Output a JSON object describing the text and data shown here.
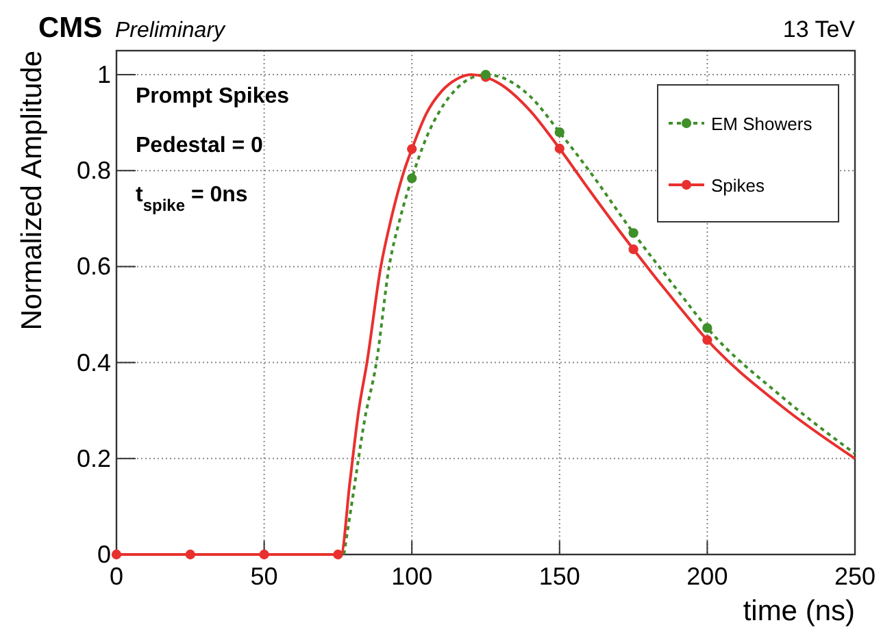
{
  "chart_data": {
    "type": "line",
    "title": "CMS",
    "subtitle": "Preliminary",
    "xlabel": "time (ns)",
    "ylabel": "Normalized Amplitude",
    "annotations": [
      "13 TeV",
      "Prompt Spikes",
      "Pedestal = 0",
      "t$_{spike}$ = 0ns"
    ],
    "xlim": [
      0,
      250
    ],
    "xticks": [
      0,
      50,
      100,
      150,
      200,
      250
    ],
    "ylim": [
      0,
      1.05
    ],
    "yticks": [
      0,
      0.2,
      0.4,
      0.6,
      0.8,
      1
    ],
    "grid": true,
    "legend": "top right",
    "series": [
      {
        "name": "EM Showers",
        "color": "#3f8f2a",
        "line_style": "dotted",
        "x": [
          77,
          80,
          84,
          88,
          92.3,
          96,
          100,
          105,
          110,
          115,
          120,
          125,
          130,
          140,
          150,
          160,
          175,
          190,
          200,
          225,
          250
        ],
        "values": [
          0,
          0.12,
          0.28,
          0.4,
          0.6,
          0.7,
          0.784,
          0.87,
          0.93,
          0.97,
          0.993,
          1,
          0.995,
          0.955,
          0.88,
          0.8,
          0.67,
          0.55,
          0.472,
          0.33,
          0.21
        ]
      },
      {
        "name": "Spikes",
        "color": "#e8312f",
        "line_style": "solid",
        "x": [
          0,
          25,
          50,
          75,
          76,
          79,
          82,
          84.8,
          89.5,
          93,
          97.4,
          100,
          105,
          110,
          115,
          120,
          125,
          130,
          140,
          150,
          160,
          175,
          190,
          200,
          225,
          250
        ],
        "values": [
          0,
          0,
          0,
          0,
          0,
          0.15,
          0.3,
          0.4,
          0.6,
          0.7,
          0.8,
          0.845,
          0.92,
          0.965,
          0.99,
          1,
          0.995,
          0.98,
          0.925,
          0.846,
          0.76,
          0.636,
          0.52,
          0.447,
          0.31,
          0.2
        ]
      },
      {
        "type": "scatter",
        "color": "#e8312f",
        "marker": "circle",
        "x": [
          0,
          25,
          50,
          75,
          100,
          125,
          150,
          175,
          200
        ],
        "values": [
          0,
          0,
          0,
          0,
          0.845,
          0.995,
          0.846,
          0.636,
          0.447
        ]
      },
      {
        "type": "scatter",
        "color": "#3f8f2a",
        "marker": "circle",
        "x": [
          100,
          125,
          150,
          175,
          200
        ],
        "values": [
          0.784,
          1,
          0.88,
          0.67,
          0.472
        ]
      }
    ]
  }
}
